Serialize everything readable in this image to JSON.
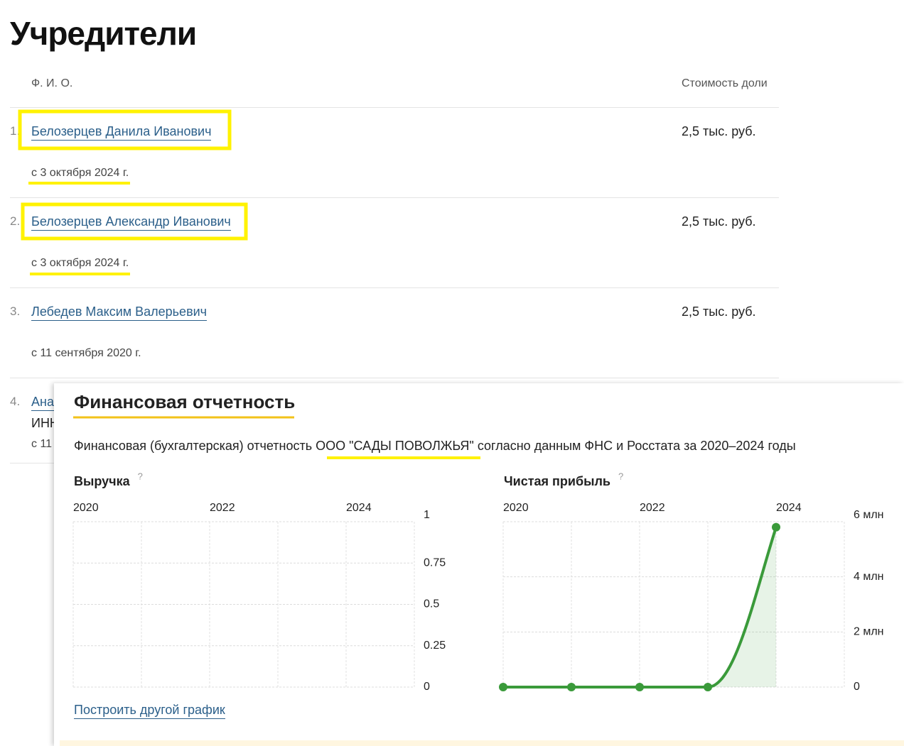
{
  "founders": {
    "title": "Учредители",
    "header": {
      "name": "Ф. И. О.",
      "share": "Стоимость доли"
    },
    "rows": [
      {
        "index": "1.",
        "name": "Белозерцев Данила Иванович",
        "since": "с 3 октября 2024 г.",
        "share": "2,5 тыс. руб."
      },
      {
        "index": "2.",
        "name": "Белозерцев Александр Иванович",
        "since": "с 3 октября 2024 г.",
        "share": "2,5 тыс. руб."
      },
      {
        "index": "3.",
        "name": "Лебедев Максим Валерьевич",
        "since": "с 11 сентября 2020 г.",
        "share": "2,5 тыс. руб."
      },
      {
        "index": "4.",
        "name": "Ана",
        "inn": "ИНН",
        "since": "с 11"
      }
    ]
  },
  "finance": {
    "title": "Финансовая отчетность",
    "description": {
      "before": "Финансовая (бухгалтерская) отчетность",
      "company": "ООО \"САДЫ ПОВОЛЖЬЯ\"",
      "after": "согласно данным ФНС и Росстата за 2020–2024 годы"
    },
    "link": "Построить другой график"
  },
  "chart_data": [
    {
      "type": "line",
      "title": "Выручка",
      "help": "?",
      "xlim": [
        2020,
        2025
      ],
      "xticks": [
        2020,
        2022,
        2024
      ],
      "ylim": [
        0,
        1
      ],
      "yticks": [
        0,
        0.25,
        0.5,
        0.75,
        1
      ],
      "grid": true
    },
    {
      "type": "line",
      "title": "Чистая прибыль",
      "help": "?",
      "x": [
        2020,
        2021,
        2022,
        2023,
        2024
      ],
      "values": [
        0,
        0,
        0,
        0,
        5800000
      ],
      "color": "#3a9a3a",
      "xlim": [
        2020,
        2025
      ],
      "xticks": [
        2020,
        2022,
        2024
      ],
      "ylim": [
        0,
        6000000
      ],
      "yticks": [
        0,
        {
          "value": 2000000,
          "label": "2 млн"
        },
        {
          "value": 4000000,
          "label": "4 млн"
        },
        {
          "value": 6000000,
          "label": "6 млн"
        }
      ],
      "grid": true
    }
  ]
}
